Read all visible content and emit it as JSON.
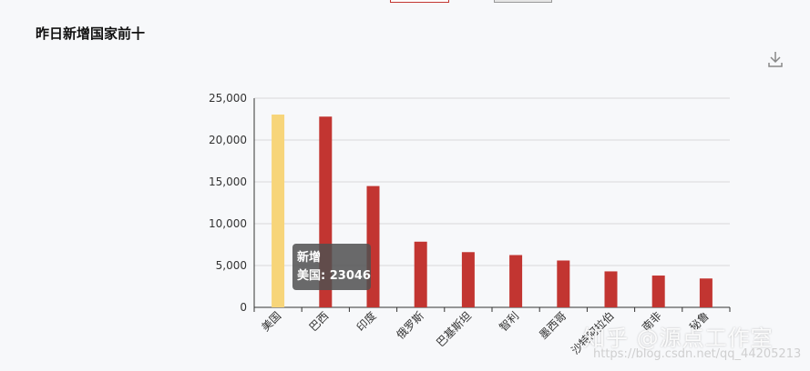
{
  "title": "昨日新增国家前十",
  "toolbox": {
    "icon": "download-icon"
  },
  "colors": {
    "bar": "#c23531",
    "highlight": "#f7d57a",
    "grid": "#d9d9d9",
    "axis": "#333333"
  },
  "tooltip": {
    "series": "新增",
    "label": "美国: 23046"
  },
  "watermark": {
    "text": "知乎 @源点工作室",
    "url": "https://blog.csdn.net/qq_44205213"
  },
  "chart_data": {
    "type": "bar",
    "categories": [
      "美国",
      "巴西",
      "印度",
      "俄罗斯",
      "巴基斯坦",
      "智利",
      "墨西哥",
      "沙特阿拉伯",
      "南非",
      "秘鲁"
    ],
    "series": [
      {
        "name": "新增",
        "values": [
          23046,
          22800,
          14500,
          7850,
          6600,
          6250,
          5600,
          4300,
          3800,
          3450
        ]
      }
    ],
    "highlight_index": 0,
    "yticks": [
      "0",
      "5,000",
      "10,000",
      "15,000",
      "20,000",
      "25,000"
    ],
    "ylim": [
      0,
      25000
    ],
    "grid": true
  }
}
